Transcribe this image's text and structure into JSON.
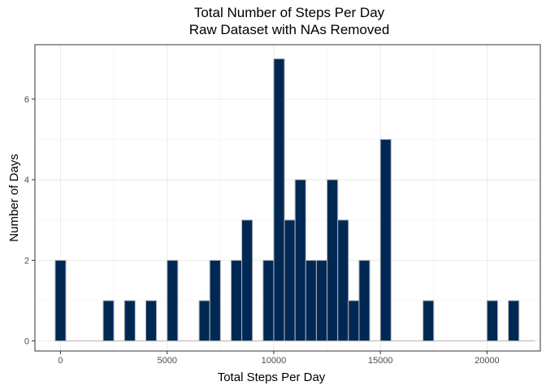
{
  "chart_data": {
    "type": "bar",
    "title": "Total Number of Steps Per Day",
    "subtitle": "Raw Dataset with NAs Removed",
    "xlabel": "Total Steps Per Day",
    "ylabel": "Number of Days",
    "xlim": [
      -1200,
      22500
    ],
    "ylim": [
      -0.25,
      7.35
    ],
    "binwidth": 500,
    "x_ticks": [
      0,
      5000,
      10000,
      15000,
      20000
    ],
    "y_ticks": [
      0,
      2,
      4,
      6
    ],
    "grid": true,
    "bin_starts": [
      -250,
      0,
      250,
      500,
      750,
      1000,
      1250,
      1500,
      1750,
      2000,
      2250,
      2500,
      2750,
      3000,
      3250,
      3500,
      3750,
      4000,
      4250,
      4500,
      4750,
      5000,
      5250,
      5500,
      5750,
      6000,
      6250,
      6500,
      6750,
      7000,
      7250,
      7500,
      7750,
      8000,
      8250,
      8500,
      8750,
      9000,
      9250,
      9500,
      9750,
      10000,
      10250,
      10500,
      10750,
      11000,
      11250,
      11500,
      11750,
      12000,
      12250,
      12500,
      12750,
      13000,
      13250,
      13500,
      13750,
      14000,
      14250,
      14500,
      14750,
      15000,
      15250,
      15500,
      15750,
      16000,
      16250,
      16500,
      16750,
      17000,
      17250,
      17500,
      17750,
      18000,
      18250,
      18500,
      18750,
      19000,
      19250,
      19500,
      19750,
      20000,
      20250,
      20500,
      20750,
      21000,
      21250,
      21500,
      21750
    ],
    "bins": [
      {
        "x0": -250,
        "x1": 250,
        "count": 2
      },
      {
        "x0": 2000,
        "x1": 2500,
        "count": 1
      },
      {
        "x0": 3000,
        "x1": 3500,
        "count": 1
      },
      {
        "x0": 4000,
        "x1": 4500,
        "count": 1
      },
      {
        "x0": 5000,
        "x1": 5500,
        "count": 2
      },
      {
        "x0": 6500,
        "x1": 7000,
        "count": 1
      },
      {
        "x0": 7000,
        "x1": 7500,
        "count": 2
      },
      {
        "x0": 8000,
        "x1": 8500,
        "count": 2
      },
      {
        "x0": 8500,
        "x1": 9000,
        "count": 3
      },
      {
        "x0": 9500,
        "x1": 10000,
        "count": 2
      },
      {
        "x0": 10000,
        "x1": 10500,
        "count": 7
      },
      {
        "x0": 10500,
        "x1": 11000,
        "count": 3
      },
      {
        "x0": 11000,
        "x1": 11500,
        "count": 4
      },
      {
        "x0": 11500,
        "x1": 12000,
        "count": 2
      },
      {
        "x0": 12000,
        "x1": 12500,
        "count": 2
      },
      {
        "x0": 12500,
        "x1": 13000,
        "count": 4
      },
      {
        "x0": 13000,
        "x1": 13500,
        "count": 3
      },
      {
        "x0": 13500,
        "x1": 14000,
        "count": 1
      },
      {
        "x0": 14000,
        "x1": 14500,
        "count": 2
      },
      {
        "x0": 15000,
        "x1": 15500,
        "count": 5
      },
      {
        "x0": 17000,
        "x1": 17500,
        "count": 1
      },
      {
        "x0": 20000,
        "x1": 20500,
        "count": 1
      },
      {
        "x0": 21000,
        "x1": 21500,
        "count": 1
      }
    ],
    "bar_color": "#002855",
    "bar_outline": "#b3b3b3"
  }
}
